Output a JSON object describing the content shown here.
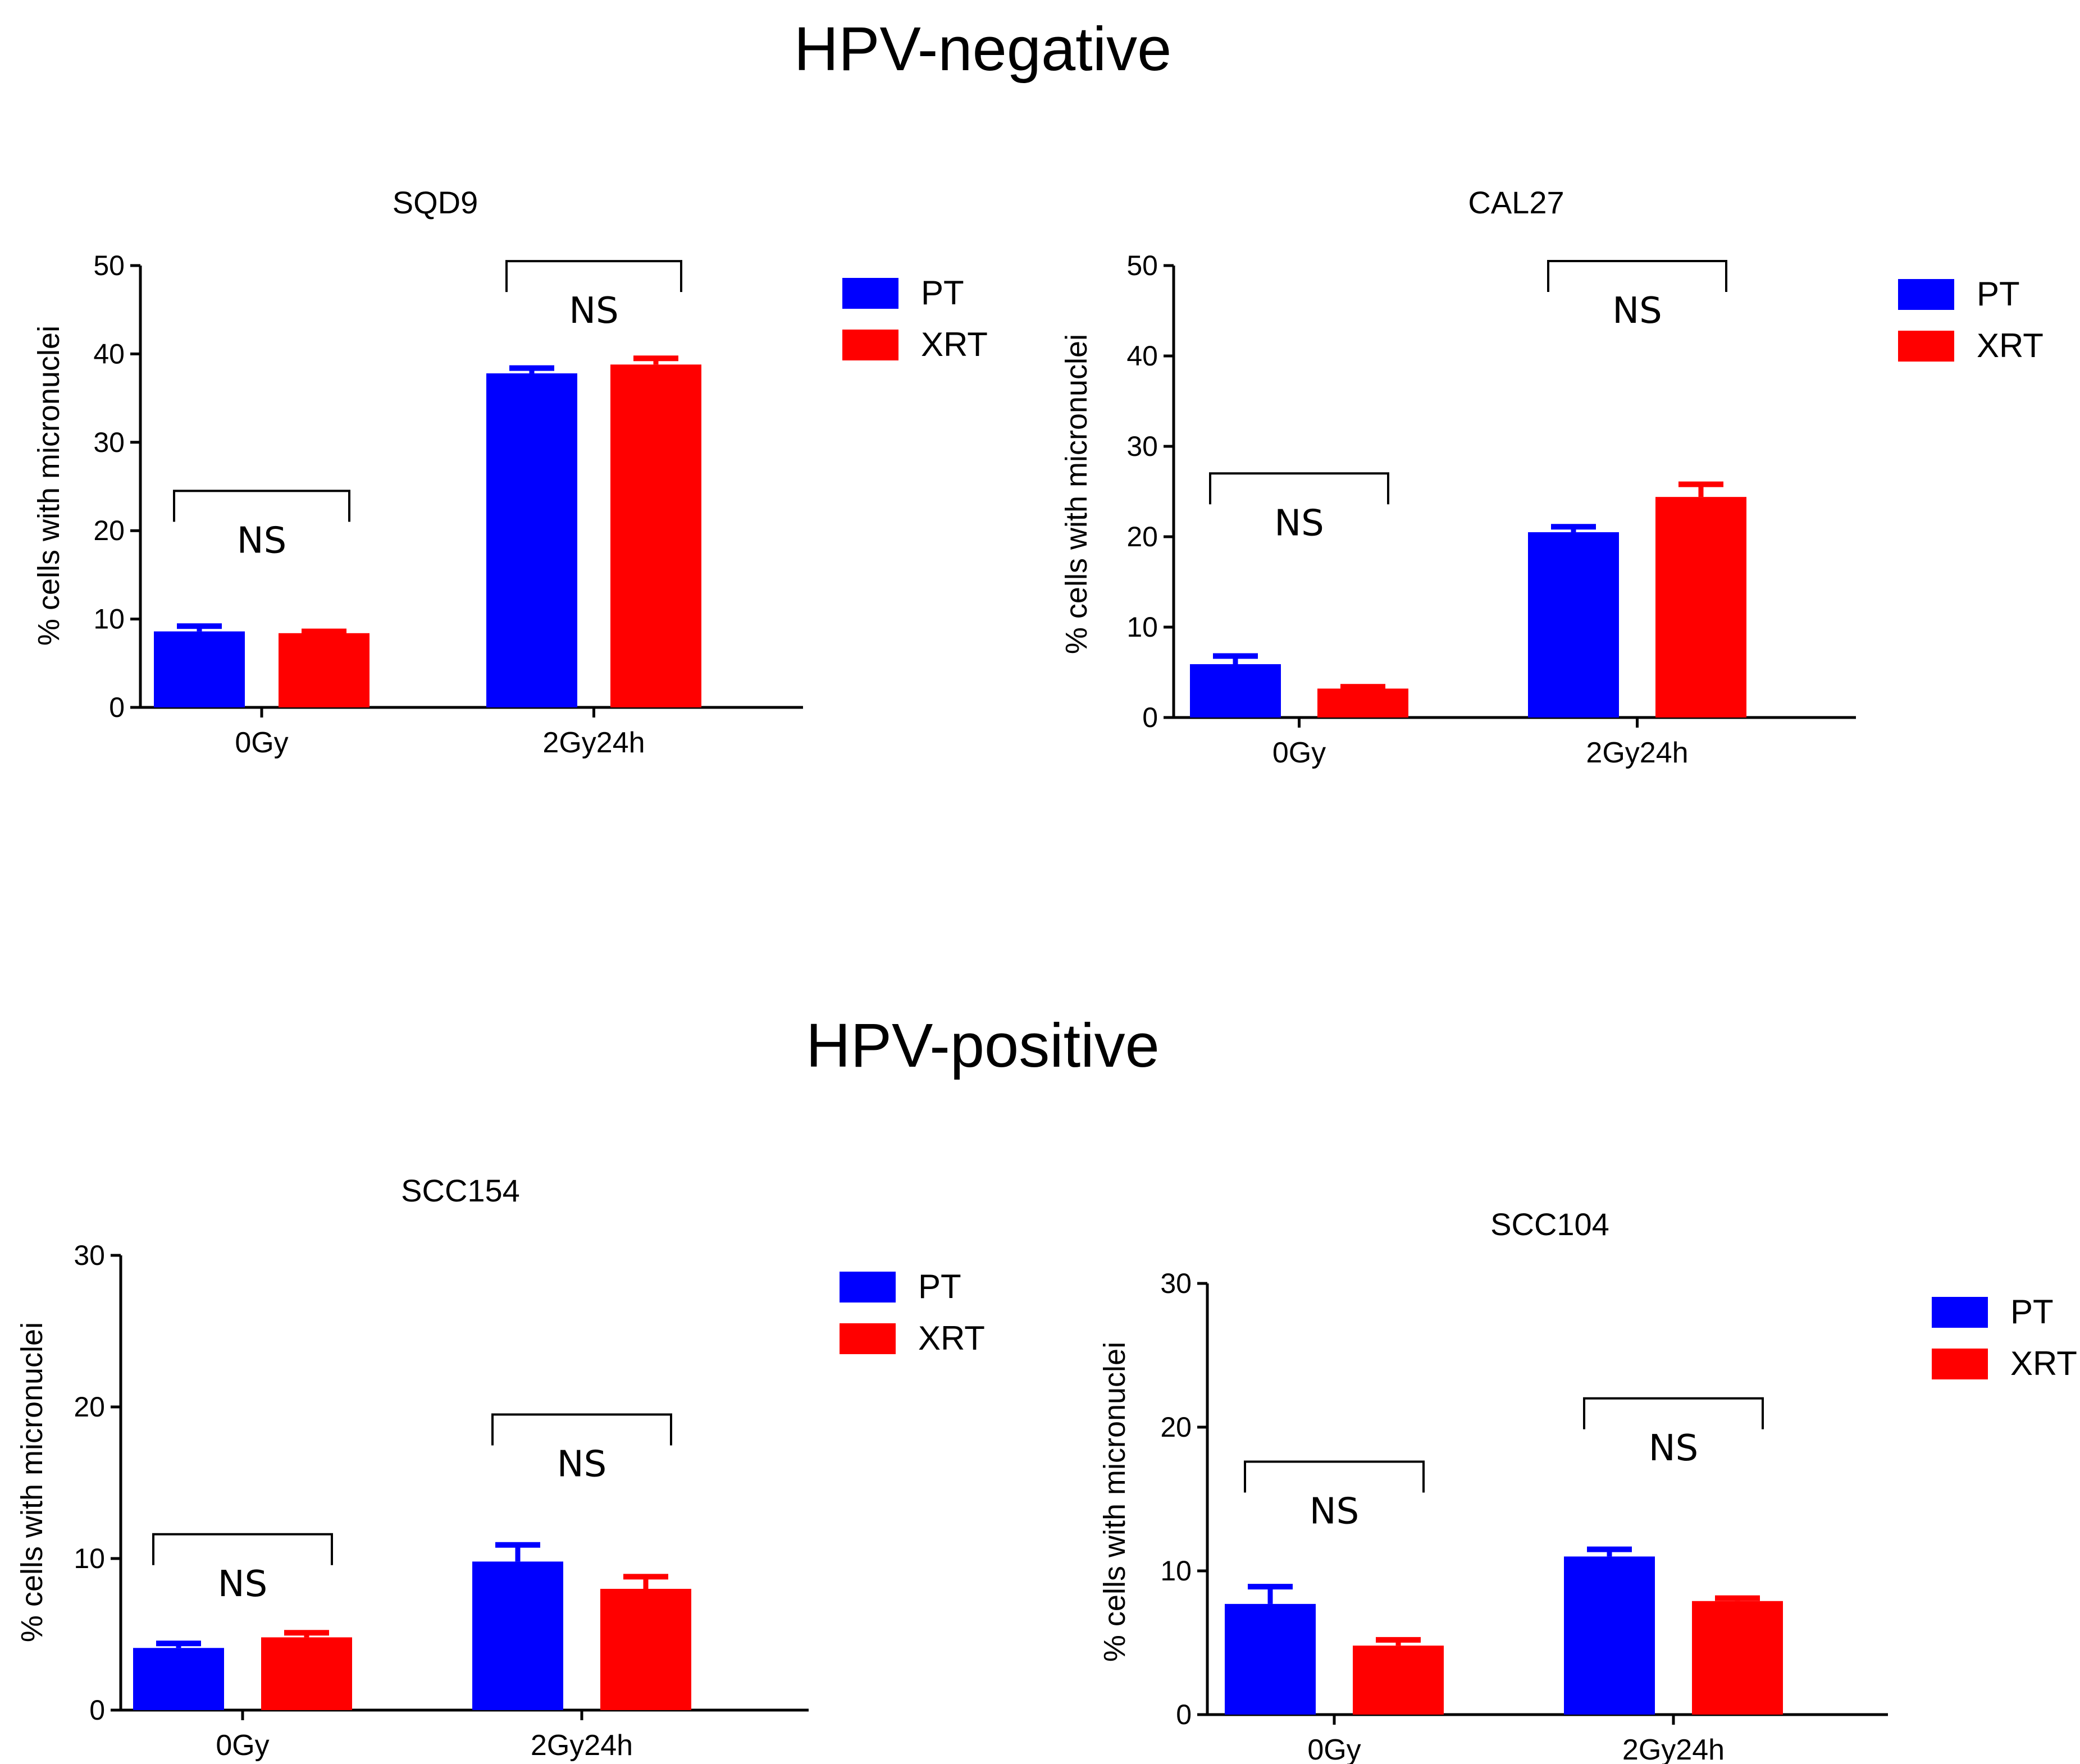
{
  "figure": {
    "sections": [
      {
        "title": "HPV-negative"
      },
      {
        "title": "HPV-positive"
      }
    ]
  },
  "chart_data": [
    {
      "type": "bar",
      "section": "HPV-negative",
      "title": "SQD9",
      "ylabel": "% cells with micronuclei",
      "xlabel": "",
      "categories": [
        "0Gy",
        "2Gy24h"
      ],
      "ylim": [
        0,
        50
      ],
      "yticks": [
        0,
        10,
        20,
        30,
        40,
        50
      ],
      "series": [
        {
          "name": "PT",
          "color": "#0000ff",
          "values": [
            8.6,
            37.8
          ],
          "errors": [
            0.6,
            0.6
          ]
        },
        {
          "name": "XRT",
          "color": "#ff0000",
          "values": [
            8.4,
            38.8
          ],
          "errors": [
            0.2,
            0.7
          ]
        }
      ],
      "annotations": [
        {
          "category": "0Gy",
          "text": "NS",
          "bracket_at": 24.5
        },
        {
          "category": "2Gy24h",
          "text": "NS",
          "bracket_at": 50.5
        }
      ],
      "legend": "top-right"
    },
    {
      "type": "bar",
      "section": "HPV-negative",
      "title": "CAL27",
      "ylabel": "% cells with micronuclei",
      "xlabel": "",
      "categories": [
        "0Gy",
        "2Gy24h"
      ],
      "ylim": [
        0,
        50
      ],
      "yticks": [
        0,
        10,
        20,
        30,
        40,
        50
      ],
      "series": [
        {
          "name": "PT",
          "color": "#0000ff",
          "values": [
            5.9,
            20.5
          ],
          "errors": [
            0.9,
            0.6
          ]
        },
        {
          "name": "XRT",
          "color": "#ff0000",
          "values": [
            3.2,
            24.4
          ],
          "errors": [
            0.2,
            1.4
          ]
        }
      ],
      "annotations": [
        {
          "category": "0Gy",
          "text": "NS",
          "bracket_at": 27.0
        },
        {
          "category": "2Gy24h",
          "text": "NS",
          "bracket_at": 50.5
        }
      ],
      "legend": "top-right"
    },
    {
      "type": "bar",
      "section": "HPV-positive",
      "title": "SCC154",
      "ylabel": "% cells with micronuclei",
      "xlabel": "",
      "categories": [
        "0Gy",
        "2Gy24h"
      ],
      "ylim": [
        0,
        30
      ],
      "yticks": [
        0,
        10,
        20,
        30
      ],
      "series": [
        {
          "name": "PT",
          "color": "#0000ff",
          "values": [
            4.1,
            9.8
          ],
          "errors": [
            0.3,
            1.1
          ]
        },
        {
          "name": "XRT",
          "color": "#ff0000",
          "values": [
            4.8,
            8.0
          ],
          "errors": [
            0.3,
            0.8
          ]
        }
      ],
      "annotations": [
        {
          "category": "0Gy",
          "text": "NS",
          "bracket_at": 11.6
        },
        {
          "category": "2Gy24h",
          "text": "NS",
          "bracket_at": 19.5
        }
      ],
      "legend": "top-right"
    },
    {
      "type": "bar",
      "section": "HPV-positive",
      "title": "SCC104",
      "ylabel": "% cells with micronuclei",
      "xlabel": "",
      "categories": [
        "0Gy",
        "2Gy24h"
      ],
      "ylim": [
        0,
        30
      ],
      "yticks": [
        0,
        10,
        20,
        30
      ],
      "series": [
        {
          "name": "PT",
          "color": "#0000ff",
          "values": [
            7.7,
            11.0
          ],
          "errors": [
            1.2,
            0.5
          ]
        },
        {
          "name": "XRT",
          "color": "#ff0000",
          "values": [
            4.8,
            7.9
          ],
          "errors": [
            0.4,
            0.2
          ]
        }
      ],
      "annotations": [
        {
          "category": "0Gy",
          "text": "NS",
          "bracket_at": 17.6
        },
        {
          "category": "2Gy24h",
          "text": "NS",
          "bracket_at": 22.0
        }
      ],
      "legend": "top-right"
    }
  ]
}
